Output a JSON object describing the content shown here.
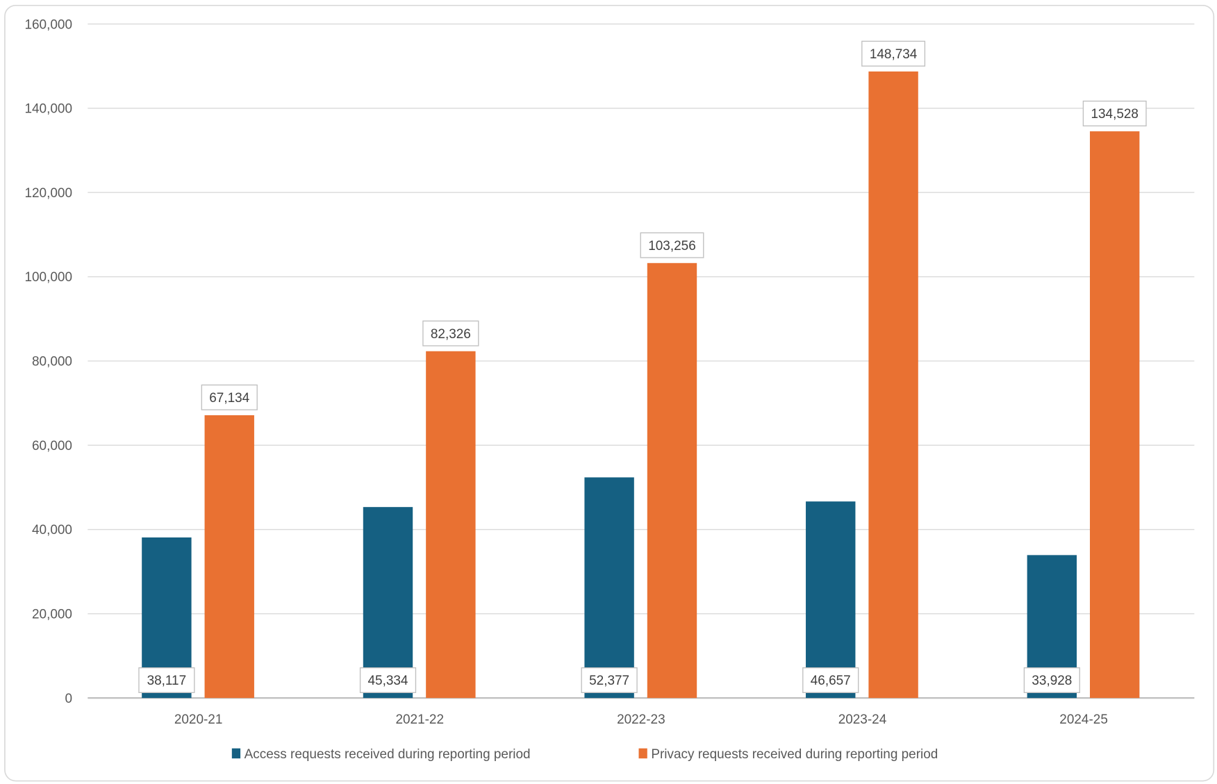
{
  "chart_data": {
    "type": "bar",
    "title": "",
    "xlabel": "",
    "ylabel": "",
    "categories": [
      "2020-21",
      "2021-22",
      "2022-23",
      "2023-24",
      "2024-25"
    ],
    "series": [
      {
        "name": "Access requests received during reporting period",
        "color": "#156082",
        "values": [
          38117,
          45334,
          52377,
          46657,
          33928
        ],
        "labels": [
          "38,117",
          "45,334",
          "52,377",
          "46,657",
          "33,928"
        ]
      },
      {
        "name": "Privacy requests received during reporting period",
        "color": "#E97132",
        "values": [
          67134,
          82326,
          103256,
          148734,
          134528
        ],
        "labels": [
          "67,134",
          "82,326",
          "103,256",
          "148,734",
          "134,528"
        ]
      }
    ],
    "ylim": [
      0,
      160000
    ],
    "yticks": [
      0,
      20000,
      40000,
      60000,
      80000,
      100000,
      120000,
      140000,
      160000
    ],
    "ytick_labels": [
      "0",
      "20,000",
      "40,000",
      "60,000",
      "80,000",
      "100,000",
      "120,000",
      "140,000",
      "160,000"
    ],
    "grid": true,
    "legend_position": "bottom"
  }
}
